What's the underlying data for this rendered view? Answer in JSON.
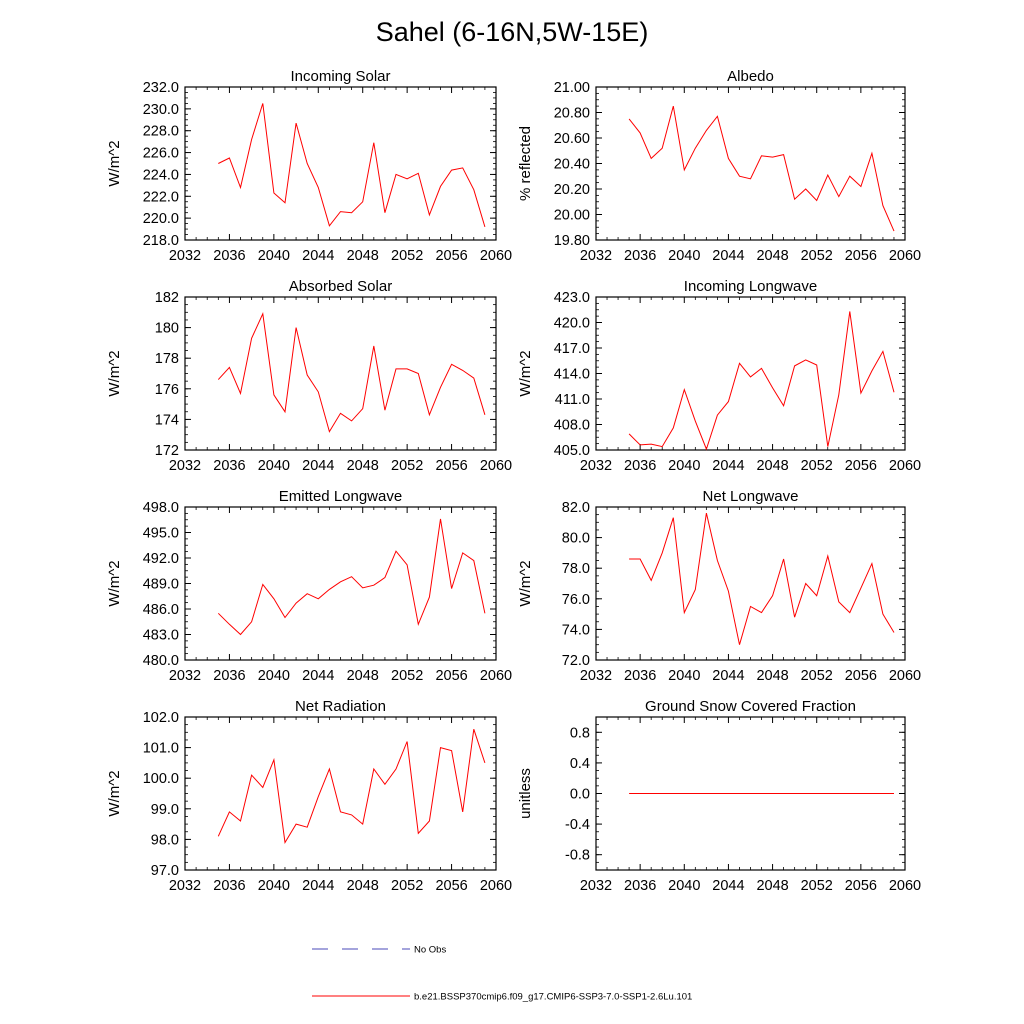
{
  "title": "Sahel (6-16N,5W-15E)",
  "legend": [
    {
      "label": "No Obs",
      "color": "#4a4ab8",
      "dashed": true
    },
    {
      "label": "b.e21.BSSP370cmip6.f09_g17.CMIP6-SSP3-7.0-SSP1-2.6Lu.101",
      "color": "#ff0000",
      "dashed": false
    }
  ],
  "chart_data": [
    {
      "type": "line",
      "title": "Incoming Solar",
      "ylabel": "W/m^2",
      "xlim": [
        2032,
        2060
      ],
      "ylim": [
        218,
        232
      ],
      "xticks": [
        "2032",
        "2036",
        "2040",
        "2044",
        "2048",
        "2052",
        "2056",
        "2060"
      ],
      "yticks": [
        "218.0",
        "220.0",
        "222.0",
        "224.0",
        "226.0",
        "228.0",
        "230.0",
        "232.0"
      ],
      "series": [
        {
          "color": "#ff0000",
          "x": [
            2035,
            2036,
            2037,
            2038,
            2039,
            2040,
            2041,
            2042,
            2043,
            2044,
            2045,
            2046,
            2047,
            2048,
            2049,
            2050,
            2051,
            2052,
            2053,
            2054,
            2055,
            2056,
            2057,
            2058,
            2059
          ],
          "y": [
            225.0,
            225.5,
            222.8,
            227.2,
            230.5,
            222.3,
            221.4,
            228.7,
            225.0,
            222.8,
            219.3,
            220.6,
            220.5,
            221.5,
            226.9,
            220.5,
            224.0,
            223.6,
            224.1,
            220.3,
            222.9,
            224.4,
            224.6,
            222.6,
            219.2
          ]
        }
      ]
    },
    {
      "type": "line",
      "title": "Albedo",
      "ylabel": "% reflected",
      "xlim": [
        2032,
        2060
      ],
      "ylim": [
        19.8,
        21.0
      ],
      "xticks": [
        "2032",
        "2036",
        "2040",
        "2044",
        "2048",
        "2052",
        "2056",
        "2060"
      ],
      "yticks": [
        "19.80",
        "20.00",
        "20.20",
        "20.40",
        "20.60",
        "20.80",
        "21.00"
      ],
      "series": [
        {
          "color": "#ff0000",
          "x": [
            2035,
            2036,
            2037,
            2038,
            2039,
            2040,
            2041,
            2042,
            2043,
            2044,
            2045,
            2046,
            2047,
            2048,
            2049,
            2050,
            2051,
            2052,
            2053,
            2054,
            2055,
            2056,
            2057,
            2058,
            2059
          ],
          "y": [
            20.75,
            20.64,
            20.44,
            20.52,
            20.85,
            20.35,
            20.52,
            20.66,
            20.77,
            20.44,
            20.3,
            20.28,
            20.46,
            20.45,
            20.47,
            20.12,
            20.2,
            20.11,
            20.31,
            20.14,
            20.3,
            20.22,
            20.48,
            20.07,
            19.87
          ]
        }
      ]
    },
    {
      "type": "line",
      "title": "Absorbed Solar",
      "ylabel": "W/m^2",
      "xlim": [
        2032,
        2060
      ],
      "ylim": [
        172,
        182
      ],
      "xticks": [
        "2032",
        "2036",
        "2040",
        "2044",
        "2048",
        "2052",
        "2056",
        "2060"
      ],
      "yticks": [
        "172",
        "174",
        "176",
        "178",
        "180",
        "182"
      ],
      "series": [
        {
          "color": "#ff0000",
          "x": [
            2035,
            2036,
            2037,
            2038,
            2039,
            2040,
            2041,
            2042,
            2043,
            2044,
            2045,
            2046,
            2047,
            2048,
            2049,
            2050,
            2051,
            2052,
            2053,
            2054,
            2055,
            2056,
            2057,
            2058,
            2059
          ],
          "y": [
            176.6,
            177.4,
            175.7,
            179.3,
            180.9,
            175.6,
            174.5,
            180.0,
            176.9,
            175.8,
            173.2,
            174.4,
            173.9,
            174.7,
            178.8,
            174.6,
            177.3,
            177.3,
            177.0,
            174.3,
            176.1,
            177.6,
            177.2,
            176.7,
            174.3
          ]
        }
      ]
    },
    {
      "type": "line",
      "title": "Incoming Longwave",
      "ylabel": "W/m^2",
      "xlim": [
        2032,
        2060
      ],
      "ylim": [
        405,
        423
      ],
      "xticks": [
        "2032",
        "2036",
        "2040",
        "2044",
        "2048",
        "2052",
        "2056",
        "2060"
      ],
      "yticks": [
        "405.0",
        "408.0",
        "411.0",
        "414.0",
        "417.0",
        "420.0",
        "423.0"
      ],
      "series": [
        {
          "color": "#ff0000",
          "x": [
            2035,
            2036,
            2037,
            2038,
            2039,
            2040,
            2041,
            2042,
            2043,
            2044,
            2045,
            2046,
            2047,
            2048,
            2049,
            2050,
            2051,
            2052,
            2053,
            2054,
            2055,
            2056,
            2057,
            2058,
            2059
          ],
          "y": [
            406.9,
            405.6,
            405.7,
            405.4,
            407.6,
            412.1,
            408.4,
            405.1,
            409.1,
            410.7,
            415.2,
            413.6,
            414.6,
            412.3,
            410.2,
            414.9,
            415.6,
            415.0,
            405.4,
            411.5,
            421.3,
            411.7,
            414.3,
            416.6,
            411.8
          ]
        }
      ]
    },
    {
      "type": "line",
      "title": "Emitted Longwave",
      "ylabel": "W/m^2",
      "xlim": [
        2032,
        2060
      ],
      "ylim": [
        480,
        498
      ],
      "xticks": [
        "2032",
        "2036",
        "2040",
        "2044",
        "2048",
        "2052",
        "2056",
        "2060"
      ],
      "yticks": [
        "480.0",
        "483.0",
        "486.0",
        "489.0",
        "492.0",
        "495.0",
        "498.0"
      ],
      "series": [
        {
          "color": "#ff0000",
          "x": [
            2035,
            2036,
            2037,
            2038,
            2039,
            2040,
            2041,
            2042,
            2043,
            2044,
            2045,
            2046,
            2047,
            2048,
            2049,
            2050,
            2051,
            2052,
            2053,
            2054,
            2055,
            2056,
            2057,
            2058,
            2059
          ],
          "y": [
            485.5,
            484.2,
            483.0,
            484.5,
            488.9,
            487.2,
            485.0,
            486.7,
            487.8,
            487.2,
            488.3,
            489.2,
            489.8,
            488.5,
            488.8,
            489.7,
            492.8,
            491.2,
            484.2,
            487.4,
            496.6,
            488.4,
            492.6,
            491.7,
            485.5
          ]
        }
      ]
    },
    {
      "type": "line",
      "title": "Net Longwave",
      "ylabel": "W/m^2",
      "xlim": [
        2032,
        2060
      ],
      "ylim": [
        72,
        82
      ],
      "xticks": [
        "2032",
        "2036",
        "2040",
        "2044",
        "2048",
        "2052",
        "2056",
        "2060"
      ],
      "yticks": [
        "72.0",
        "74.0",
        "76.0",
        "78.0",
        "80.0",
        "82.0"
      ],
      "series": [
        {
          "color": "#ff0000",
          "x": [
            2035,
            2036,
            2037,
            2038,
            2039,
            2040,
            2041,
            2042,
            2043,
            2044,
            2045,
            2046,
            2047,
            2048,
            2049,
            2050,
            2051,
            2052,
            2053,
            2054,
            2055,
            2056,
            2057,
            2058,
            2059
          ],
          "y": [
            78.6,
            78.6,
            77.2,
            79.0,
            81.3,
            75.1,
            76.6,
            81.6,
            78.5,
            76.5,
            73.0,
            75.5,
            75.1,
            76.2,
            78.6,
            74.8,
            77.0,
            76.2,
            78.8,
            75.8,
            75.1,
            76.7,
            78.3,
            75.0,
            73.8
          ]
        }
      ]
    },
    {
      "type": "line",
      "title": "Net Radiation",
      "ylabel": "W/m^2",
      "xlim": [
        2032,
        2060
      ],
      "ylim": [
        97,
        102
      ],
      "xticks": [
        "2032",
        "2036",
        "2040",
        "2044",
        "2048",
        "2052",
        "2056",
        "2060"
      ],
      "yticks": [
        "97.0",
        "98.0",
        "99.0",
        "100.0",
        "101.0",
        "102.0"
      ],
      "series": [
        {
          "color": "#ff0000",
          "x": [
            2035,
            2036,
            2037,
            2038,
            2039,
            2040,
            2041,
            2042,
            2043,
            2044,
            2045,
            2046,
            2047,
            2048,
            2049,
            2050,
            2051,
            2052,
            2053,
            2054,
            2055,
            2056,
            2057,
            2058,
            2059
          ],
          "y": [
            98.1,
            98.9,
            98.6,
            100.1,
            99.7,
            100.6,
            97.9,
            98.5,
            98.4,
            99.4,
            100.3,
            98.9,
            98.8,
            98.5,
            100.3,
            99.8,
            100.3,
            101.2,
            98.2,
            98.6,
            101.0,
            100.9,
            98.9,
            101.6,
            100.5
          ]
        }
      ]
    },
    {
      "type": "line",
      "title": "Ground Snow Covered Fraction",
      "ylabel": "unitless",
      "xlim": [
        2032,
        2060
      ],
      "ylim": [
        -1.0,
        1.0
      ],
      "xticks": [
        "2032",
        "2036",
        "2040",
        "2044",
        "2048",
        "2052",
        "2056",
        "2060"
      ],
      "yticks": [
        "-0.8",
        "-0.4",
        "0.0",
        "0.4",
        "0.8"
      ],
      "series": [
        {
          "color": "#ff0000",
          "x": [
            2035,
            2036,
            2037,
            2038,
            2039,
            2040,
            2041,
            2042,
            2043,
            2044,
            2045,
            2046,
            2047,
            2048,
            2049,
            2050,
            2051,
            2052,
            2053,
            2054,
            2055,
            2056,
            2057,
            2058,
            2059
          ],
          "y": [
            0,
            0,
            0,
            0,
            0,
            0,
            0,
            0,
            0,
            0,
            0,
            0,
            0,
            0,
            0,
            0,
            0,
            0,
            0,
            0,
            0,
            0,
            0,
            0,
            0
          ]
        }
      ]
    }
  ]
}
